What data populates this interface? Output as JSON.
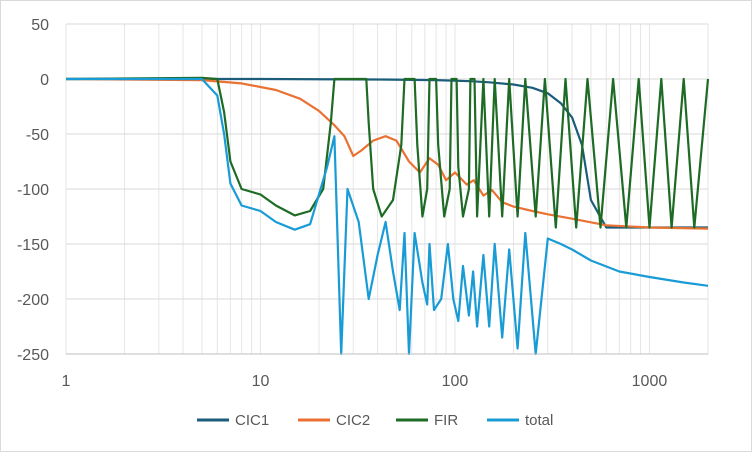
{
  "chart_data": {
    "type": "line",
    "x_scale": "log",
    "xlim": [
      1,
      2000
    ],
    "ylim": [
      -250,
      50
    ],
    "x_ticks": [
      "1",
      "10",
      "100",
      "1000"
    ],
    "y_ticks": [
      "50",
      "0",
      "-50",
      "-100",
      "-150",
      "-200",
      "-250"
    ],
    "grid": {
      "y_major": true,
      "x_minor": true
    },
    "legend": {
      "position": "bottom"
    },
    "series": [
      {
        "name": "CIC1",
        "color": "#1a5c7a",
        "points": [
          [
            1,
            0
          ],
          [
            10,
            0
          ],
          [
            40,
            -0.5
          ],
          [
            80,
            -1
          ],
          [
            120,
            -2
          ],
          [
            150,
            -3
          ],
          [
            200,
            -5
          ],
          [
            250,
            -8
          ],
          [
            300,
            -13
          ],
          [
            350,
            -22
          ],
          [
            400,
            -35
          ],
          [
            450,
            -60
          ],
          [
            500,
            -110
          ],
          [
            600,
            -135
          ],
          [
            1000,
            -135
          ],
          [
            2000,
            -135
          ]
        ]
      },
      {
        "name": "CIC2",
        "color": "#e97132",
        "points": [
          [
            1,
            0
          ],
          [
            5,
            -1
          ],
          [
            8,
            -4
          ],
          [
            12,
            -10
          ],
          [
            16,
            -18
          ],
          [
            20,
            -29
          ],
          [
            24,
            -42
          ],
          [
            27,
            -52
          ],
          [
            30,
            -70
          ],
          [
            33,
            -65
          ],
          [
            38,
            -56
          ],
          [
            44,
            -52
          ],
          [
            50,
            -56
          ],
          [
            58,
            -75
          ],
          [
            66,
            -85
          ],
          [
            74,
            -72
          ],
          [
            82,
            -78
          ],
          [
            90,
            -92
          ],
          [
            100,
            -85
          ],
          [
            115,
            -96
          ],
          [
            125,
            -92
          ],
          [
            140,
            -106
          ],
          [
            155,
            -101
          ],
          [
            175,
            -112
          ],
          [
            200,
            -116
          ],
          [
            250,
            -120
          ],
          [
            300,
            -123
          ],
          [
            400,
            -127
          ],
          [
            600,
            -133
          ],
          [
            1000,
            -135
          ],
          [
            2000,
            -136
          ]
        ]
      },
      {
        "name": "FIR",
        "color": "#1d6b24",
        "points": [
          [
            1,
            0
          ],
          [
            5,
            1
          ],
          [
            6,
            0
          ],
          [
            6.5,
            -30
          ],
          [
            7,
            -75
          ],
          [
            8,
            -100
          ],
          [
            10,
            -105
          ],
          [
            12,
            -115
          ],
          [
            15,
            -124
          ],
          [
            18,
            -120
          ],
          [
            21,
            -100
          ],
          [
            23,
            -40
          ],
          [
            24,
            0
          ],
          [
            35,
            0
          ],
          [
            36,
            -40
          ],
          [
            38,
            -100
          ],
          [
            42,
            -125
          ],
          [
            48,
            -110
          ],
          [
            53,
            -60
          ],
          [
            55,
            0
          ],
          [
            62,
            0
          ],
          [
            64,
            -60
          ],
          [
            68,
            -125
          ],
          [
            72,
            -100
          ],
          [
            74,
            0
          ],
          [
            80,
            0
          ],
          [
            82,
            -60
          ],
          [
            88,
            -125
          ],
          [
            94,
            -100
          ],
          [
            96,
            0
          ],
          [
            102,
            0
          ],
          [
            104,
            -80
          ],
          [
            110,
            -125
          ],
          [
            118,
            -100
          ],
          [
            120,
            0
          ],
          [
            126,
            0
          ],
          [
            130,
            -125
          ],
          [
            140,
            0
          ],
          [
            150,
            -125
          ],
          [
            160,
            0
          ],
          [
            175,
            -125
          ],
          [
            190,
            0
          ],
          [
            210,
            -125
          ],
          [
            230,
            0
          ],
          [
            260,
            -125
          ],
          [
            290,
            0
          ],
          [
            330,
            -135
          ],
          [
            370,
            0
          ],
          [
            420,
            -135
          ],
          [
            480,
            0
          ],
          [
            560,
            -135
          ],
          [
            650,
            0
          ],
          [
            760,
            -135
          ],
          [
            880,
            0
          ],
          [
            1000,
            -135
          ],
          [
            1150,
            0
          ],
          [
            1300,
            -135
          ],
          [
            1500,
            0
          ],
          [
            1700,
            -135
          ],
          [
            2000,
            0
          ]
        ]
      },
      {
        "name": "total",
        "color": "#199bd6",
        "points": [
          [
            1,
            0
          ],
          [
            5,
            0
          ],
          [
            6,
            -15
          ],
          [
            6.5,
            -50
          ],
          [
            7,
            -95
          ],
          [
            8,
            -115
          ],
          [
            10,
            -120
          ],
          [
            12,
            -130
          ],
          [
            15,
            -137
          ],
          [
            18,
            -132
          ],
          [
            22,
            -80
          ],
          [
            24,
            -52
          ],
          [
            26,
            -250
          ],
          [
            28,
            -100
          ],
          [
            32,
            -130
          ],
          [
            36,
            -200
          ],
          [
            40,
            -160
          ],
          [
            44,
            -130
          ],
          [
            48,
            -175
          ],
          [
            52,
            -210
          ],
          [
            55,
            -140
          ],
          [
            58,
            -250
          ],
          [
            62,
            -140
          ],
          [
            68,
            -185
          ],
          [
            72,
            -205
          ],
          [
            74,
            -150
          ],
          [
            78,
            -210
          ],
          [
            85,
            -200
          ],
          [
            92,
            -150
          ],
          [
            98,
            -200
          ],
          [
            104,
            -220
          ],
          [
            110,
            -170
          ],
          [
            118,
            -215
          ],
          [
            124,
            -175
          ],
          [
            130,
            -225
          ],
          [
            140,
            -160
          ],
          [
            150,
            -225
          ],
          [
            160,
            -150
          ],
          [
            175,
            -235
          ],
          [
            190,
            -155
          ],
          [
            210,
            -245
          ],
          [
            230,
            -140
          ],
          [
            260,
            -250
          ],
          [
            300,
            -145
          ],
          [
            350,
            -150
          ],
          [
            400,
            -155
          ],
          [
            500,
            -165
          ],
          [
            700,
            -175
          ],
          [
            1000,
            -180
          ],
          [
            1500,
            -185
          ],
          [
            2000,
            -188
          ]
        ]
      }
    ]
  }
}
